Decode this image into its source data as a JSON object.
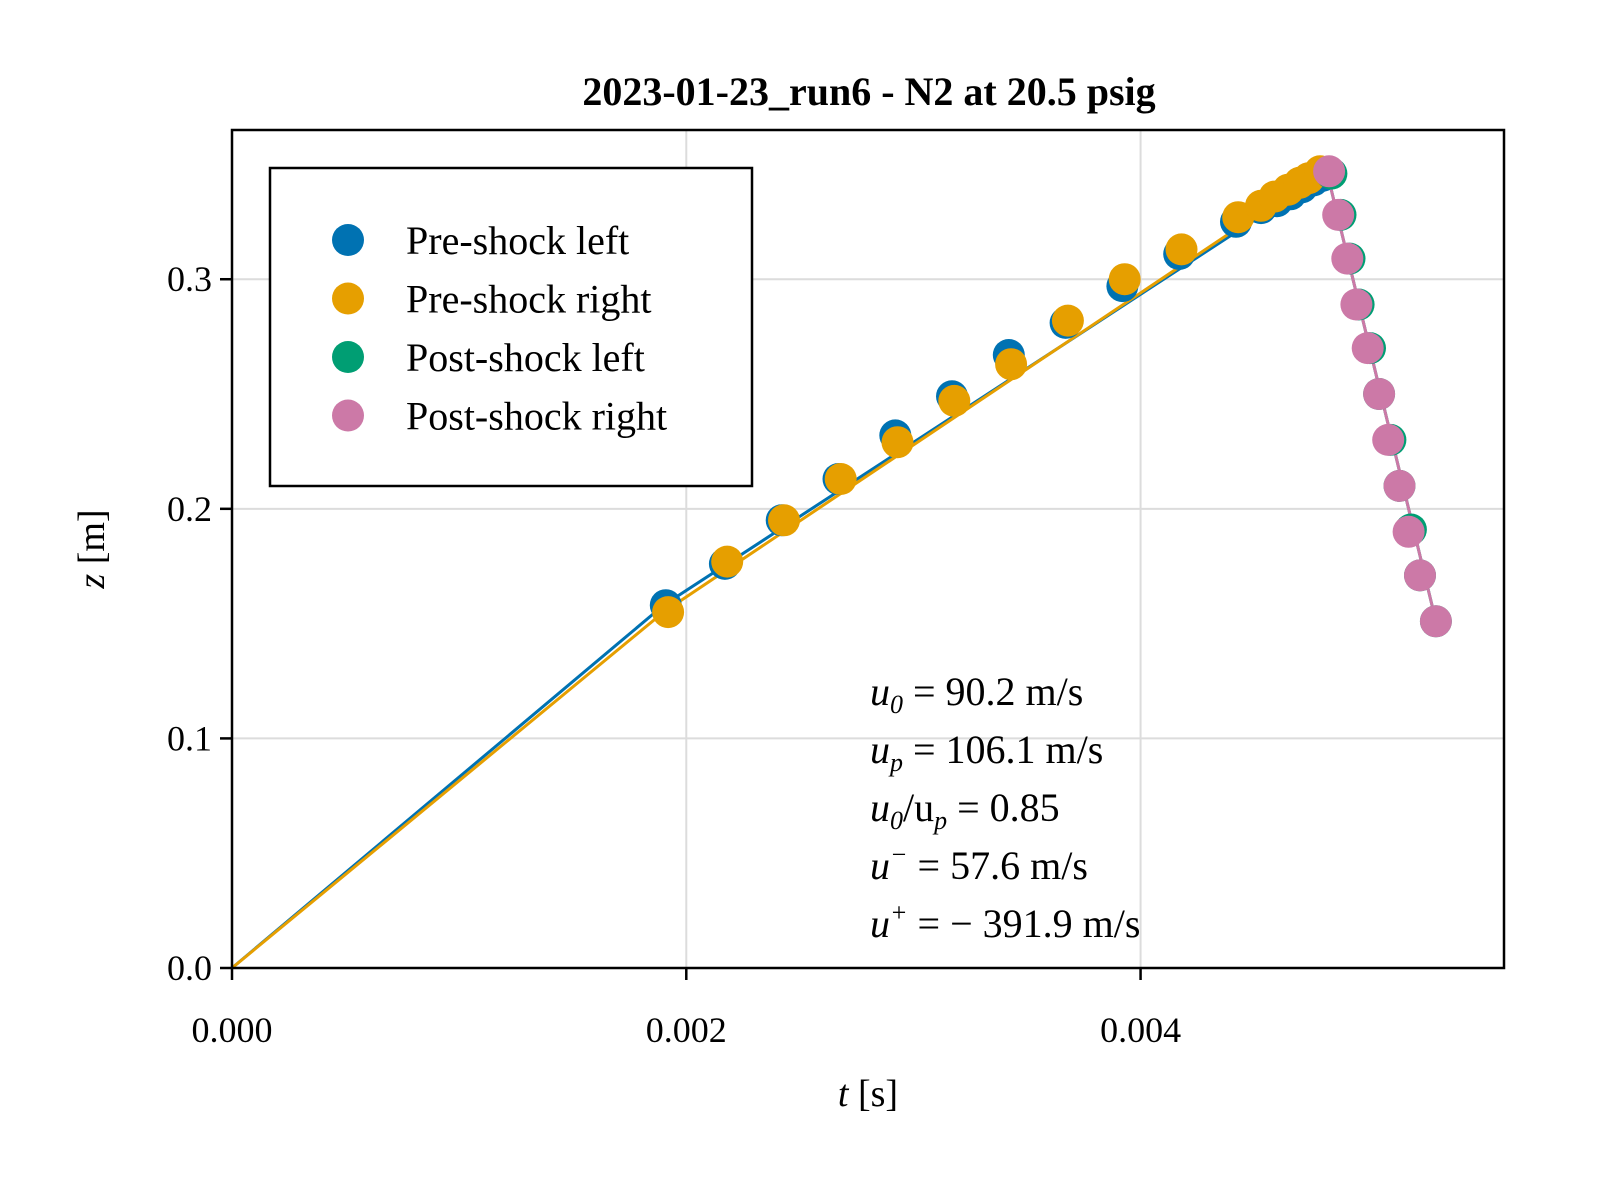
{
  "chart_data": {
    "type": "scatter",
    "title": "2023-01-23_run6 -  N2 at 20.5 psig",
    "xlabel_var": "t",
    "xlabel_unit": "[s]",
    "ylabel_var": "z",
    "ylabel_unit": "[m]",
    "xlim": [
      0.0,
      0.0056
    ],
    "ylim": [
      0.0,
      0.365
    ],
    "x_ticks": [
      0.0,
      0.002,
      0.004
    ],
    "x_tick_labels": [
      "0.000",
      "0.002",
      "0.004"
    ],
    "y_ticks": [
      0.0,
      0.1,
      0.2,
      0.3
    ],
    "y_tick_labels": [
      "0.0",
      "0.1",
      "0.2",
      "0.3"
    ],
    "grid": true,
    "legend_placement": "top-left",
    "series": [
      {
        "name": "Pre-shock left",
        "color": "#0072B2",
        "points": [
          [
            0.00191,
            0.158
          ],
          [
            0.00217,
            0.176
          ],
          [
            0.00242,
            0.195
          ],
          [
            0.00267,
            0.213
          ],
          [
            0.00292,
            0.232
          ],
          [
            0.00317,
            0.249
          ],
          [
            0.00342,
            0.267
          ],
          [
            0.00367,
            0.281
          ],
          [
            0.00392,
            0.297
          ],
          [
            0.00417,
            0.311
          ],
          [
            0.00442,
            0.325
          ],
          [
            0.00453,
            0.331
          ],
          [
            0.0046,
            0.334
          ],
          [
            0.00466,
            0.337
          ],
          [
            0.00471,
            0.34
          ],
          [
            0.00476,
            0.343
          ],
          [
            0.0048,
            0.345
          ]
        ],
        "fit": [
          [
            0.0,
            0.0
          ],
          [
            0.0019,
            0.158
          ],
          [
            0.0048,
            0.345
          ]
        ]
      },
      {
        "name": "Pre-shock right",
        "color": "#E69F00",
        "points": [
          [
            0.00192,
            0.155
          ],
          [
            0.00218,
            0.177
          ],
          [
            0.00243,
            0.195
          ],
          [
            0.00268,
            0.213
          ],
          [
            0.00293,
            0.229
          ],
          [
            0.00318,
            0.247
          ],
          [
            0.00343,
            0.263
          ],
          [
            0.00368,
            0.282
          ],
          [
            0.00393,
            0.3
          ],
          [
            0.00418,
            0.313
          ],
          [
            0.00443,
            0.327
          ],
          [
            0.00453,
            0.332
          ],
          [
            0.00459,
            0.336
          ],
          [
            0.00465,
            0.339
          ],
          [
            0.0047,
            0.342
          ],
          [
            0.00474,
            0.344
          ],
          [
            0.00479,
            0.347
          ]
        ],
        "fit": [
          [
            0.0,
            0.0
          ],
          [
            0.0019,
            0.155
          ],
          [
            0.0048,
            0.347
          ]
        ]
      },
      {
        "name": "Post-shock left",
        "color": "#009E73",
        "points": [
          [
            0.00484,
            0.346
          ],
          [
            0.00488,
            0.328
          ],
          [
            0.00492,
            0.309
          ],
          [
            0.00496,
            0.289
          ],
          [
            0.00501,
            0.27
          ],
          [
            0.00505,
            0.25
          ],
          [
            0.0051,
            0.23
          ],
          [
            0.00514,
            0.21
          ],
          [
            0.00519,
            0.191
          ],
          [
            0.00523,
            0.171
          ],
          [
            0.0053,
            0.151
          ]
        ],
        "fit": [
          [
            0.00482,
            0.347
          ],
          [
            0.0053,
            0.151
          ]
        ]
      },
      {
        "name": "Post-shock right",
        "color": "#CC79A7",
        "points": [
          [
            0.00483,
            0.347
          ],
          [
            0.00487,
            0.328
          ],
          [
            0.00491,
            0.309
          ],
          [
            0.00495,
            0.289
          ],
          [
            0.005,
            0.27
          ],
          [
            0.00505,
            0.25
          ],
          [
            0.00509,
            0.23
          ],
          [
            0.00514,
            0.21
          ],
          [
            0.00518,
            0.19
          ],
          [
            0.00523,
            0.171
          ],
          [
            0.0053,
            0.151
          ]
        ],
        "fit": [
          [
            0.00482,
            0.347
          ],
          [
            0.0053,
            0.151
          ]
        ]
      }
    ],
    "annotations": [
      {
        "var": "u",
        "sub": "0",
        "sup": "",
        "text": " = 90.2 m/s"
      },
      {
        "var": "u",
        "sub": "p",
        "sup": "",
        "text": " = 106.1 m/s"
      },
      {
        "var": "u",
        "sub": "0",
        "sup": "",
        "text": "/u",
        "text_sub": "p",
        "text_tail": " = 0.85"
      },
      {
        "var": "u",
        "sub": "",
        "sup": "−",
        "text": " = 57.6 m/s"
      },
      {
        "var": "u",
        "sub": "",
        "sup": "+",
        "text": " = − 391.9 m/s"
      }
    ]
  }
}
